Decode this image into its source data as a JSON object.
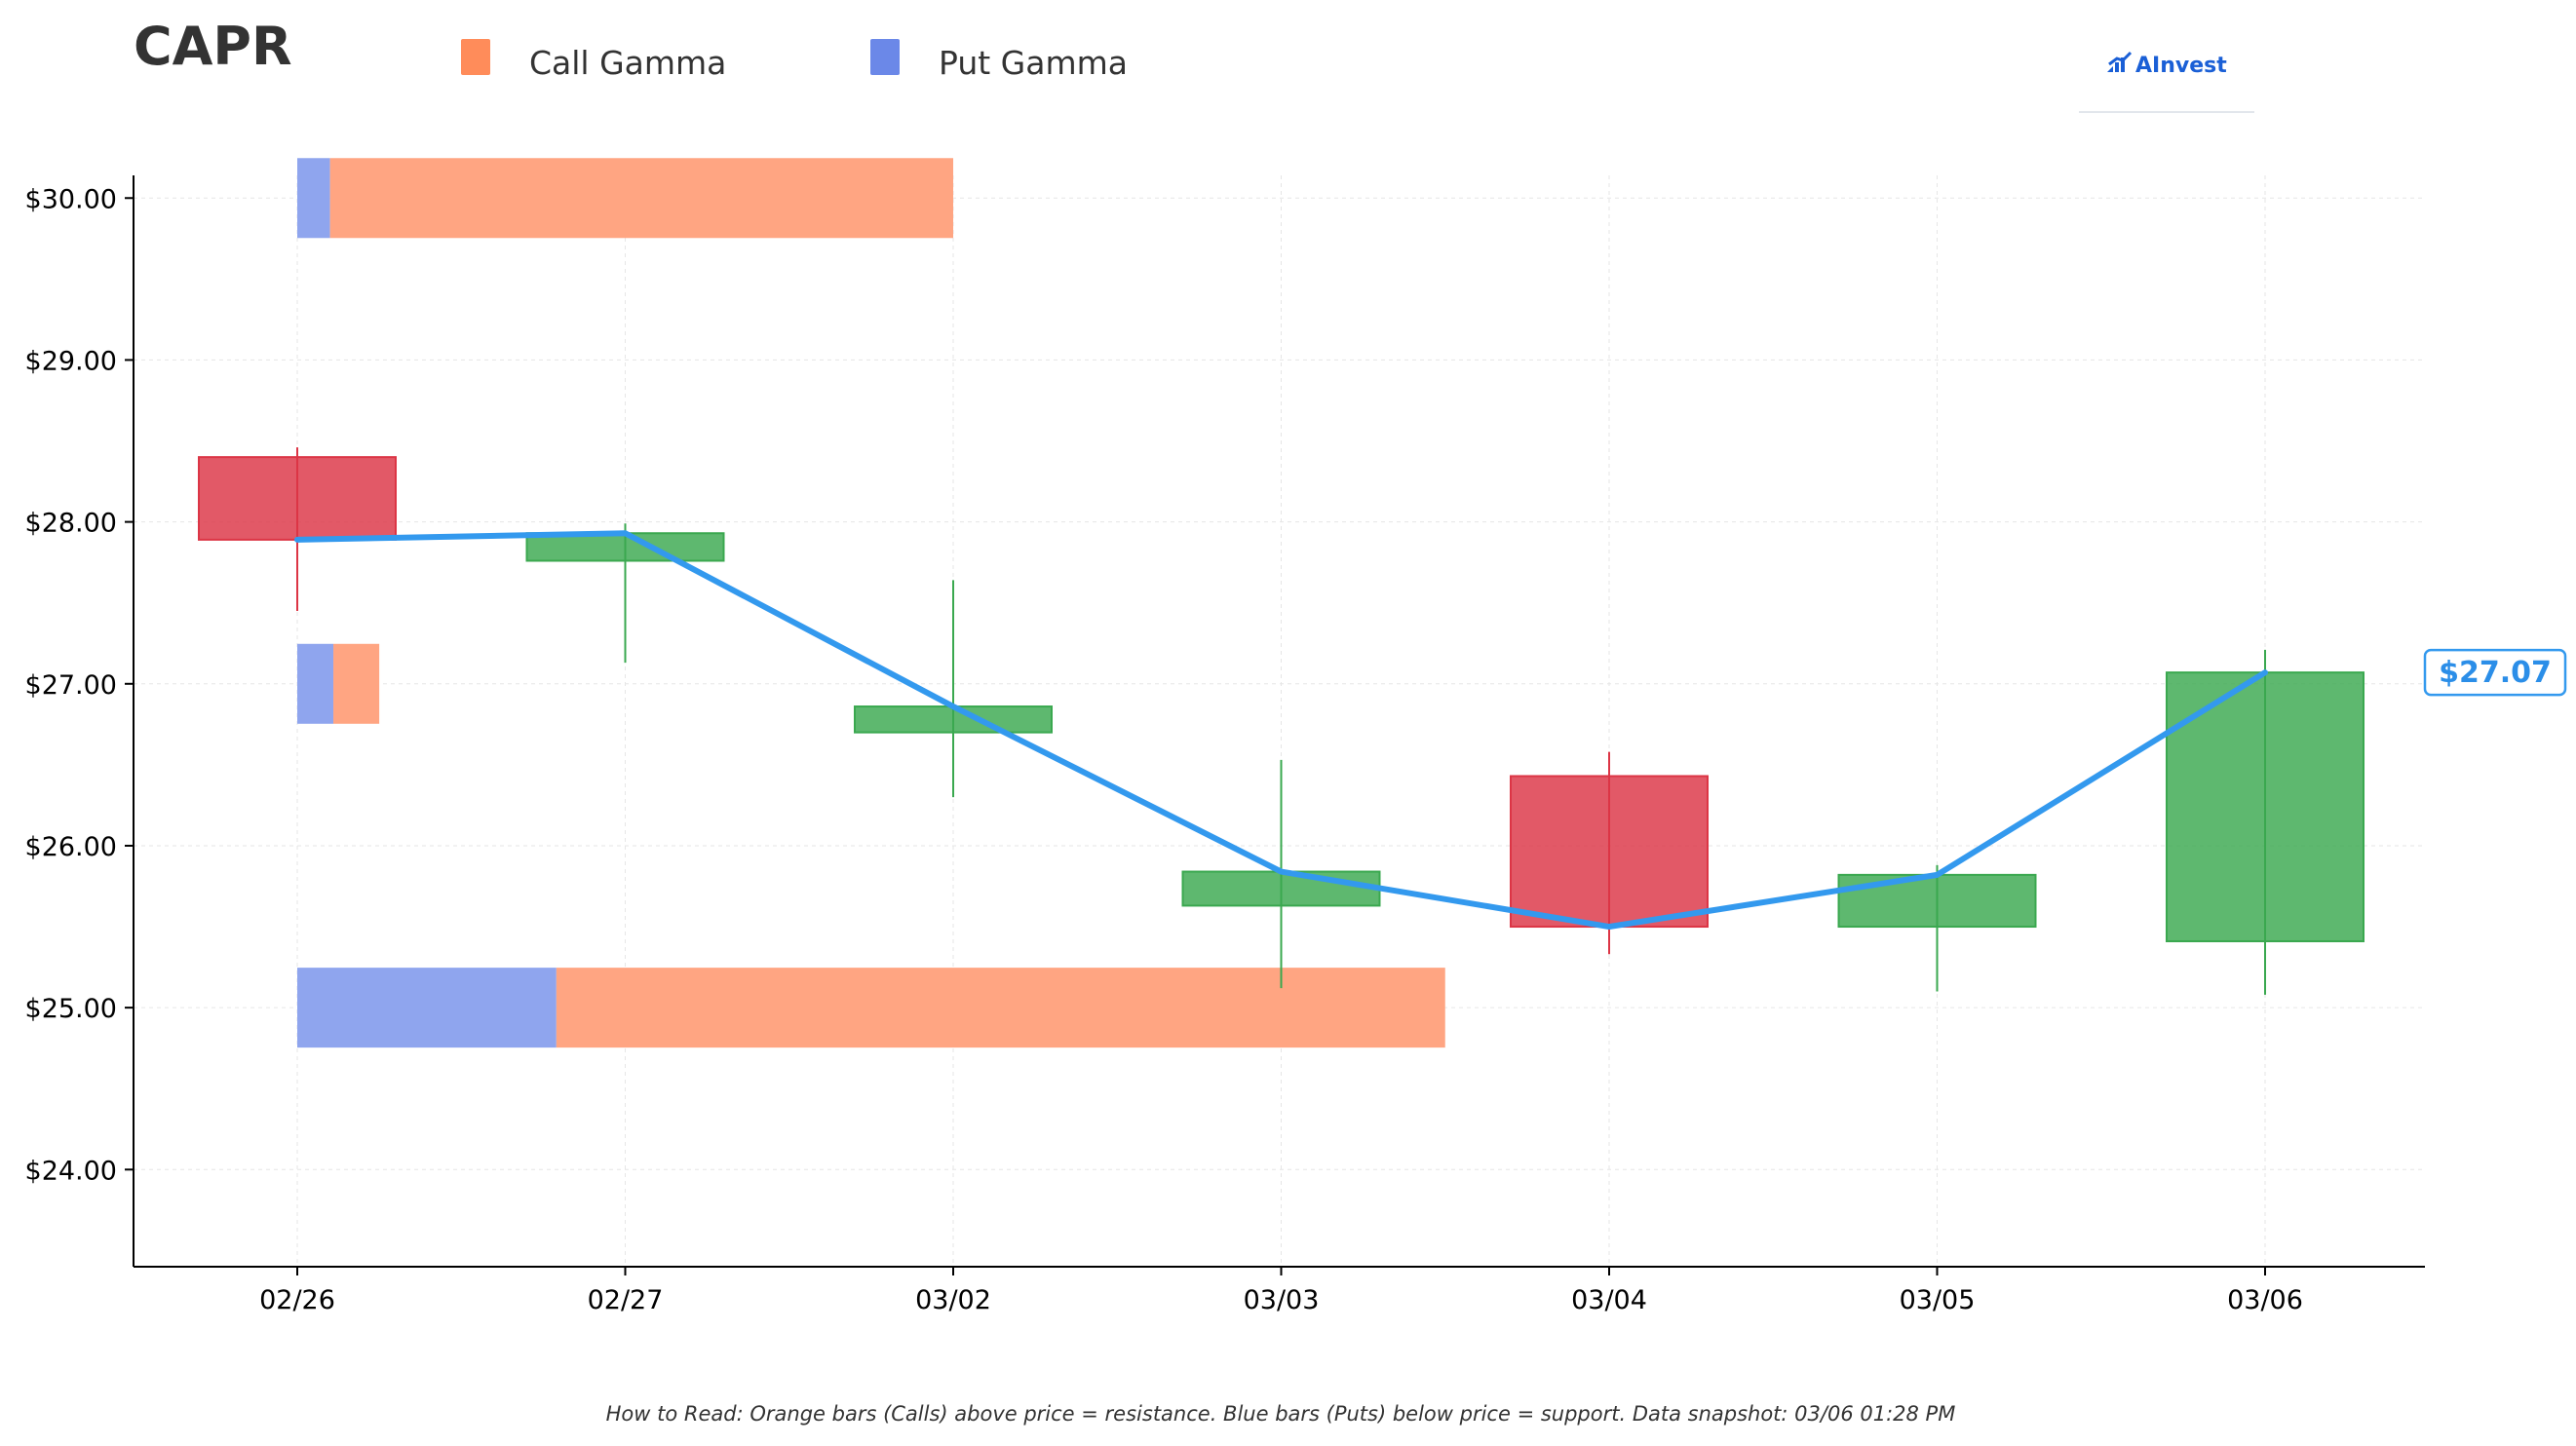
{
  "header": {
    "ticker": "CAPR",
    "logo_text": "AInvest"
  },
  "legend": [
    {
      "label": "Call Gamma",
      "color": "#ff8c5a"
    },
    {
      "label": "Put Gamma",
      "color": "#6b88e8"
    }
  ],
  "footnote": "How to Read: Orange bars (Calls) above price = resistance. Blue bars (Puts) below price = support. Data snapshot: 03/06 01:28 PM",
  "chart_data": {
    "type": "candlestick",
    "categories": [
      "02/26",
      "02/27",
      "03/02",
      "03/03",
      "03/04",
      "03/05",
      "03/06"
    ],
    "y_ticks": [
      24,
      25,
      26,
      27,
      28,
      29,
      30
    ],
    "y_tick_labels": [
      "$24.00",
      "$25.00",
      "$26.00",
      "$27.00",
      "$28.00",
      "$29.00",
      "$30.00"
    ],
    "ylim": [
      23.4,
      30.14
    ],
    "grid": true,
    "colors": {
      "up": "#3aa84f",
      "down": "#dc3545",
      "line": "#3399ee",
      "call": "#ffa582",
      "put": "#8fa5ee"
    },
    "candles": [
      {
        "date": "02/26",
        "open": 28.4,
        "high": 28.46,
        "low": 27.45,
        "close": 27.89
      },
      {
        "date": "02/27",
        "open": 27.76,
        "high": 27.99,
        "low": 27.13,
        "close": 27.93
      },
      {
        "date": "03/02",
        "open": 26.7,
        "high": 27.64,
        "low": 26.3,
        "close": 26.86
      },
      {
        "date": "03/03",
        "open": 25.63,
        "high": 26.53,
        "low": 25.12,
        "close": 25.84
      },
      {
        "date": "03/04",
        "open": 26.43,
        "high": 26.58,
        "low": 25.33,
        "close": 25.5
      },
      {
        "date": "03/05",
        "open": 25.5,
        "high": 25.88,
        "low": 25.1,
        "close": 25.82
      },
      {
        "date": "03/06",
        "open": 25.41,
        "high": 27.21,
        "low": 25.08,
        "close": 27.07
      }
    ],
    "close_line": [
      27.89,
      27.93,
      26.86,
      25.84,
      25.5,
      25.82,
      27.07
    ],
    "gamma_levels": [
      {
        "strike": 30.0,
        "put_gamma": 0.1,
        "call_gamma": 1.9
      },
      {
        "strike": 27.0,
        "put_gamma": 0.11,
        "call_gamma": 0.14
      },
      {
        "strike": 25.0,
        "put_gamma": 0.79,
        "call_gamma": 2.71
      }
    ],
    "last_price_label": "$27.07"
  }
}
